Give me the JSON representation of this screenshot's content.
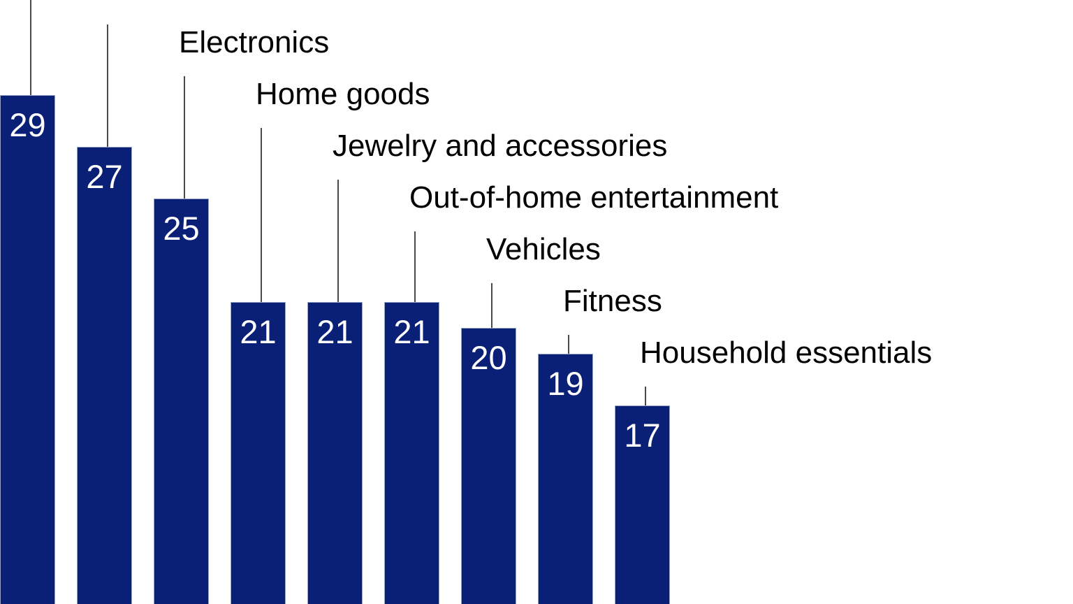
{
  "chart_data": {
    "type": "bar",
    "orientation": "vertical",
    "categories": [
      "",
      "",
      "Electronics",
      "Home goods",
      "Jewelry and accessories",
      "Out-of-home entertainment",
      "Vehicles",
      "Fitness",
      "Household essentials"
    ],
    "values": [
      29,
      27,
      25,
      21,
      21,
      21,
      20,
      19,
      17
    ],
    "value_labels": [
      "29",
      "27",
      "25",
      "21",
      "21",
      "21",
      "20",
      "19",
      "17"
    ],
    "title": "",
    "xlabel": "",
    "ylabel": "",
    "axes_visible": false,
    "gridlines": false,
    "legend": "none",
    "layout_hints": {
      "labels_layout": "stepped diagonal labels connected to bar tops by thin vertical leader lines",
      "crop": "chart is cropped: labels of the first two bars are above the frame and bar bases extend below the frame"
    }
  },
  "colors": {
    "background": "#ffffff",
    "bar_fill": "#0a2076",
    "bar_border": "#98a4c6",
    "value_label": "#ffffff",
    "category_label": "#000000",
    "leader_line": "#4a4a4a"
  }
}
